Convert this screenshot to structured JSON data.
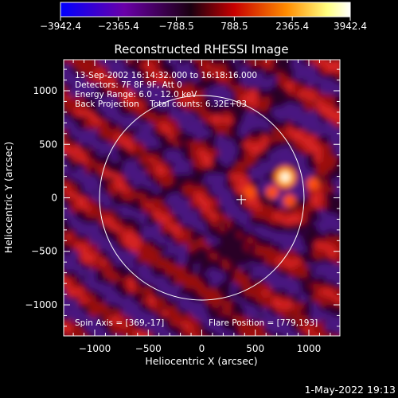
{
  "chart_data": {
    "type": "heatmap",
    "title": "Reconstructed RHESSI Image",
    "xlabel": "Heliocentric X (arcsec)",
    "ylabel": "Heliocentric Y (arcsec)",
    "xlim": [
      -1290,
      1290
    ],
    "ylim": [
      -1290,
      1290
    ],
    "xticks": [
      -1000,
      -500,
      0,
      500,
      1000
    ],
    "yticks": [
      -1000,
      -500,
      0,
      500,
      1000
    ],
    "xtick_labels": [
      "−1000",
      "−500",
      "0",
      "500",
      "1000"
    ],
    "ytick_labels": [
      "−1000",
      "−500",
      "0",
      "500",
      "1000"
    ],
    "colorbar": {
      "range": [
        -3942.4,
        3942.4
      ],
      "ticks": [
        -3942.4,
        -2365.4,
        -788.5,
        788.5,
        2365.4,
        3942.4
      ],
      "tick_labels": [
        "−3942.4",
        "−2365.4",
        "−788.5",
        "788.5",
        "2365.4",
        "3942.4"
      ],
      "colors": [
        "#0000ff",
        "#6a00a8",
        "#1a0010",
        "#c80000",
        "#ff8c00",
        "#ffff80",
        "#ffffff"
      ]
    },
    "info_lines": [
      "13-Sep-2002 16:14:32.000 to 16:18:16.000",
      "Detectors: 7F 8F 9F, Att 0",
      "Energy Range: 6.0 - 12.0 keV",
      "Back Projection    Total counts: 6.32E+03"
    ],
    "spin_axis_text": "Spin Axis = [369,-17]",
    "flare_position_text": "Flare Position = [779,193]",
    "spin_axis": [
      369,
      -17
    ],
    "flare_position": [
      779,
      193
    ],
    "solar_limb_radius": 955,
    "peak_value": 3942.4,
    "timestamp": "1-May-2022 19:13"
  }
}
